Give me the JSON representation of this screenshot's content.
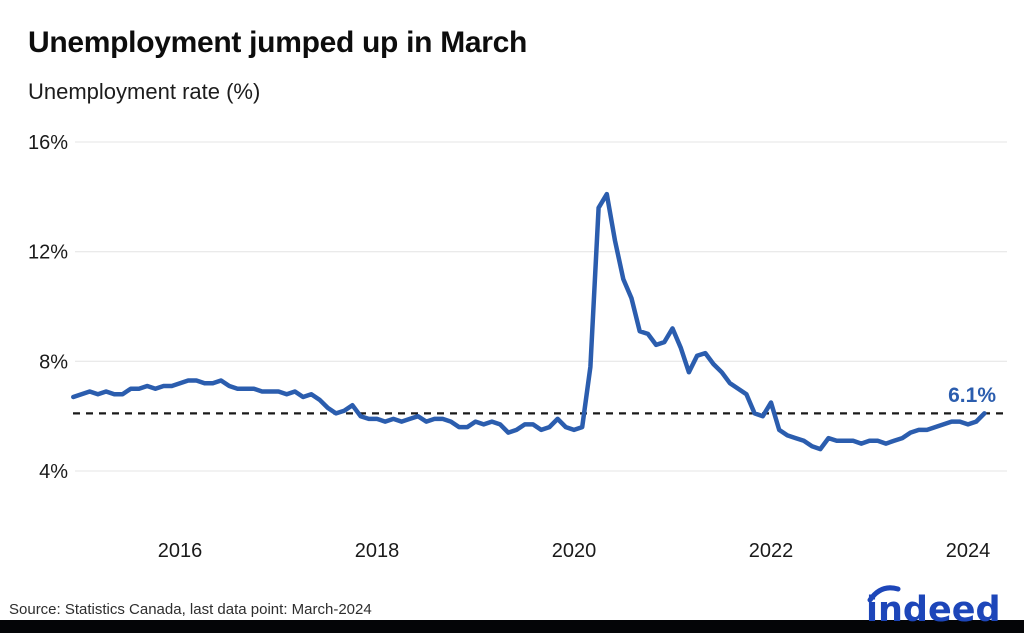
{
  "header": {
    "title": "Unemployment jumped up in March",
    "subtitle": "Unemployment rate (%)"
  },
  "chart": {
    "y_ticks": [
      "16%",
      "12%",
      "8%",
      "4%"
    ],
    "x_ticks": [
      "2016",
      "2018",
      "2020",
      "2022",
      "2024"
    ],
    "annotation_label": "6.1%",
    "line_color": "#2b5dae",
    "grid_color": "#e4e4e4",
    "reference_color": "#1a1a1a",
    "annotation_color": "#2b5dae"
  },
  "chart_data": {
    "type": "line",
    "title": "Unemployment jumped up in March",
    "ylabel": "Unemployment rate (%)",
    "unit": "%",
    "frequency": "monthly",
    "x_start": "2014-12",
    "x_end": "2024-03",
    "axis_y_ticks": [
      4,
      8,
      12,
      16
    ],
    "axis_x_ticks": [
      2016,
      2018,
      2020,
      2022,
      2024
    ],
    "ylim": [
      3,
      16.5
    ],
    "grid": true,
    "reference_line": {
      "value": 6.1,
      "label": "6.1%",
      "style": "dashed"
    },
    "last_point": {
      "label": "March-2024",
      "value": 6.1
    },
    "values": [
      6.7,
      6.8,
      6.9,
      6.8,
      6.9,
      6.8,
      6.8,
      7.0,
      7.0,
      7.1,
      7.0,
      7.1,
      7.1,
      7.2,
      7.3,
      7.3,
      7.2,
      7.2,
      7.3,
      7.1,
      7.0,
      7.0,
      7.0,
      6.9,
      6.9,
      6.9,
      6.8,
      6.9,
      6.7,
      6.8,
      6.6,
      6.3,
      6.1,
      6.2,
      6.4,
      6.0,
      5.9,
      5.9,
      5.8,
      5.9,
      5.8,
      5.9,
      6.0,
      5.8,
      5.9,
      5.9,
      5.8,
      5.6,
      5.6,
      5.8,
      5.7,
      5.8,
      5.7,
      5.4,
      5.5,
      5.7,
      5.7,
      5.5,
      5.6,
      5.9,
      5.6,
      5.5,
      5.6,
      7.8,
      13.6,
      14.1,
      12.4,
      11.0,
      10.3,
      9.1,
      9.0,
      8.6,
      8.7,
      9.2,
      8.5,
      7.6,
      8.2,
      8.3,
      7.9,
      7.6,
      7.2,
      7.0,
      6.8,
      6.1,
      6.0,
      6.5,
      5.5,
      5.3,
      5.2,
      5.1,
      4.9,
      4.8,
      5.2,
      5.1,
      5.1,
      5.1,
      5.0,
      5.1,
      5.1,
      5.0,
      5.1,
      5.2,
      5.4,
      5.5,
      5.5,
      5.6,
      5.7,
      5.8,
      5.8,
      5.7,
      5.8,
      6.1
    ]
  },
  "footer": {
    "source": "Source: Statistics Canada, last data point: March-2024",
    "logo": "indeed"
  }
}
